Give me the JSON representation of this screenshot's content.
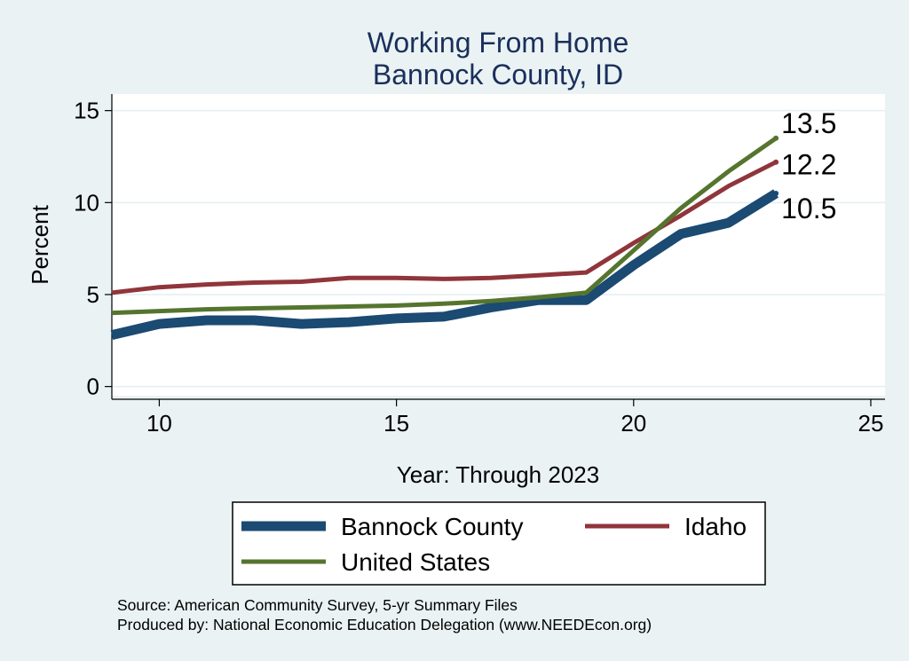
{
  "chart_data": {
    "type": "line",
    "title": [
      "Working From Home",
      "Bannock County, ID"
    ],
    "xlabel": "Year: Through 2023",
    "ylabel": "Percent",
    "xlim": [
      9,
      25.3
    ],
    "ylim": [
      -0.5,
      15.9
    ],
    "xticks": [
      10,
      15,
      20,
      25
    ],
    "yticks": [
      0,
      5,
      10,
      15
    ],
    "grid": "horizontal",
    "legend_position": "bottom",
    "x": [
      9,
      10,
      11,
      12,
      13,
      14,
      15,
      16,
      17,
      18,
      19,
      20,
      21,
      22,
      23
    ],
    "series": [
      {
        "name": "Bannock County",
        "color": "#1b4a72",
        "values": [
          2.8,
          3.4,
          3.6,
          3.6,
          3.4,
          3.5,
          3.7,
          3.8,
          4.3,
          4.7,
          4.7,
          6.6,
          8.3,
          8.9,
          10.5
        ],
        "end_label": "10.5"
      },
      {
        "name": "Idaho",
        "color": "#90353b",
        "values": [
          5.1,
          5.4,
          5.55,
          5.65,
          5.7,
          5.9,
          5.9,
          5.85,
          5.9,
          6.05,
          6.2,
          7.8,
          9.3,
          10.9,
          12.2
        ],
        "end_label": "12.2"
      },
      {
        "name": "United States",
        "color": "#55752f",
        "values": [
          4.0,
          4.1,
          4.2,
          4.25,
          4.3,
          4.35,
          4.4,
          4.5,
          4.65,
          4.85,
          5.1,
          7.4,
          9.7,
          11.7,
          13.5
        ],
        "end_label": "13.5"
      }
    ]
  },
  "footer": {
    "source": "Source: American Community Survey, 5-yr Summary Files",
    "produced_by": "Produced by: National Economic Education Delegation (www.NEEDEcon.org)"
  }
}
